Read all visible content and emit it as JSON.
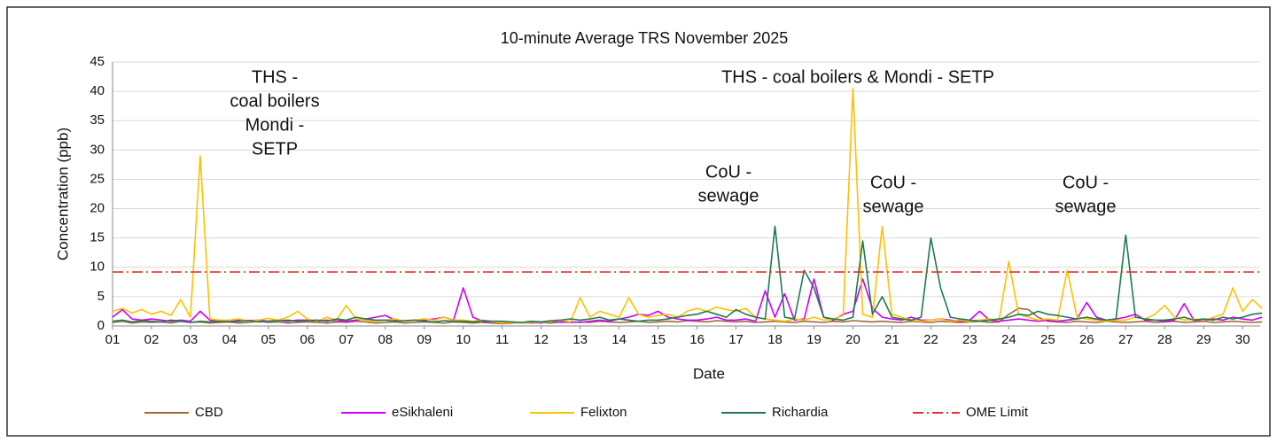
{
  "chart_data": {
    "type": "line",
    "title": "10-minute  Average  TRS  November  2025",
    "xlabel": "Date",
    "ylabel": "Concentration (ppb)",
    "xlim": [
      1,
      30.45
    ],
    "ylim": [
      0,
      45
    ],
    "yticks": [
      0,
      5,
      10,
      15,
      20,
      25,
      30,
      35,
      40,
      45
    ],
    "xticks": [
      {
        "value": 1,
        "label": "01"
      },
      {
        "value": 2,
        "label": "02"
      },
      {
        "value": 3,
        "label": "03"
      },
      {
        "value": 4,
        "label": "04"
      },
      {
        "value": 5,
        "label": "05"
      },
      {
        "value": 6,
        "label": "06"
      },
      {
        "value": 7,
        "label": "07"
      },
      {
        "value": 8,
        "label": "08"
      },
      {
        "value": 9,
        "label": "09"
      },
      {
        "value": 10,
        "label": "10"
      },
      {
        "value": 11,
        "label": "11"
      },
      {
        "value": 12,
        "label": "12"
      },
      {
        "value": 13,
        "label": "13"
      },
      {
        "value": 14,
        "label": "14"
      },
      {
        "value": 15,
        "label": "15"
      },
      {
        "value": 16,
        "label": "16"
      },
      {
        "value": 17,
        "label": "17"
      },
      {
        "value": 18,
        "label": "18"
      },
      {
        "value": 19,
        "label": "19"
      },
      {
        "value": 20,
        "label": "20"
      },
      {
        "value": 21,
        "label": "21"
      },
      {
        "value": 22,
        "label": "22"
      },
      {
        "value": 23,
        "label": "23"
      },
      {
        "value": 24,
        "label": "24"
      },
      {
        "value": 25,
        "label": "25"
      },
      {
        "value": 26,
        "label": "26"
      },
      {
        "value": 27,
        "label": "27"
      },
      {
        "value": 28,
        "label": "28"
      },
      {
        "value": 29,
        "label": "29"
      },
      {
        "value": 30,
        "label": "30"
      }
    ],
    "grid": true,
    "legend": "bottom",
    "x": [
      1,
      1.25,
      1.5,
      1.75,
      2,
      2.25,
      2.5,
      2.75,
      3,
      3.25,
      3.5,
      3.75,
      4,
      4.25,
      4.5,
      4.75,
      5,
      5.25,
      5.5,
      5.75,
      6,
      6.25,
      6.5,
      6.75,
      7,
      7.25,
      7.5,
      7.75,
      8,
      8.25,
      8.5,
      8.75,
      9,
      9.25,
      9.5,
      9.75,
      10,
      10.25,
      10.5,
      10.75,
      11,
      11.25,
      11.5,
      11.75,
      12,
      12.25,
      12.5,
      12.75,
      13,
      13.25,
      13.5,
      13.75,
      14,
      14.25,
      14.5,
      14.75,
      15,
      15.25,
      15.5,
      15.75,
      16,
      16.25,
      16.5,
      16.75,
      17,
      17.25,
      17.5,
      17.75,
      18,
      18.25,
      18.5,
      18.75,
      19,
      19.25,
      19.5,
      19.75,
      20,
      20.25,
      20.5,
      20.75,
      21,
      21.25,
      21.5,
      21.75,
      22,
      22.25,
      22.5,
      22.75,
      23,
      23.25,
      23.5,
      23.75,
      24,
      24.25,
      24.5,
      24.75,
      25,
      25.25,
      25.5,
      25.75,
      26,
      26.25,
      26.5,
      26.75,
      27,
      27.25,
      27.5,
      27.75,
      28,
      28.25,
      28.5,
      28.75,
      29,
      29.25,
      29.5,
      29.75,
      30,
      30.25,
      30.5
    ],
    "series": [
      {
        "name": "CBD",
        "color": "#a0693a",
        "values": [
          0.6,
          0.8,
          0.5,
          0.7,
          0.6,
          0.7,
          0.5,
          0.8,
          0.6,
          0.7,
          0.5,
          0.6,
          0.7,
          0.5,
          0.6,
          0.8,
          0.6,
          0.7,
          0.5,
          0.6,
          0.7,
          0.6,
          0.5,
          0.7,
          0.6,
          0.8,
          0.7,
          0.5,
          0.6,
          0.7,
          0.5,
          0.6,
          0.7,
          0.6,
          0.5,
          0.7,
          0.6,
          0.5,
          0.6,
          0.5,
          0.4,
          0.5,
          0.6,
          0.5,
          0.6,
          0.5,
          0.7,
          0.6,
          0.7,
          0.6,
          0.8,
          0.7,
          0.6,
          0.7,
          0.8,
          0.6,
          0.7,
          0.8,
          0.7,
          0.9,
          0.8,
          0.7,
          0.9,
          0.8,
          0.7,
          0.8,
          0.6,
          0.7,
          0.8,
          0.7,
          0.6,
          0.8,
          0.7,
          0.6,
          0.8,
          0.7,
          0.9,
          0.8,
          0.7,
          0.8,
          0.7,
          0.6,
          0.8,
          0.7,
          0.6,
          0.8,
          0.7,
          0.6,
          0.7,
          0.8,
          0.6,
          0.7,
          2,
          3,
          2.8,
          1.5,
          0.8,
          0.7,
          0.6,
          0.8,
          0.7,
          0.6,
          0.8,
          0.7,
          0.6,
          0.7,
          0.8,
          0.6,
          0.7,
          0.8,
          0.6,
          0.7,
          0.8,
          0.6,
          0.7,
          0.8,
          0.7,
          0.6,
          0.7
        ]
      },
      {
        "name": "eSikhaleni",
        "color": "#cc00ff",
        "values": [
          1.5,
          2.8,
          1.2,
          1,
          1.2,
          1,
          0.8,
          1,
          0.8,
          2.5,
          1,
          0.8,
          0.8,
          1,
          0.9,
          1,
          0.8,
          1,
          0.8,
          1,
          1,
          0.8,
          1,
          0.9,
          0.8,
          1,
          1.2,
          1.5,
          1.8,
          1,
          0.8,
          1,
          1,
          1.2,
          1.5,
          1,
          6.5,
          1.5,
          0.8,
          0.6,
          0.5,
          0.6,
          0.5,
          0.6,
          0.5,
          0.8,
          0.6,
          0.7,
          0.6,
          0.8,
          1,
          0.8,
          1.2,
          1.5,
          2,
          1.8,
          2.5,
          1.5,
          1.2,
          1,
          1,
          1.2,
          1.5,
          1,
          1,
          1.2,
          0.8,
          6,
          1.5,
          5.5,
          1,
          1.2,
          8,
          1.5,
          1,
          2,
          2.5,
          8,
          3,
          1.5,
          1.2,
          1,
          1.5,
          1,
          1,
          1.2,
          1,
          0.8,
          1,
          2.5,
          1,
          0.8,
          1,
          1.2,
          1,
          0.8,
          1,
          0.8,
          1,
          1.2,
          4,
          1.5,
          1,
          1.2,
          1.5,
          2,
          1,
          1,
          0.8,
          1,
          3.8,
          1,
          1,
          1.2,
          1,
          1.5,
          1.2,
          1,
          1.5
        ]
      },
      {
        "name": "Felixton",
        "color": "#ffc000",
        "values": [
          2.5,
          3,
          2.2,
          2.8,
          2,
          2.5,
          1.8,
          4.5,
          1.5,
          29,
          1.2,
          1,
          1,
          1.2,
          0.8,
          1,
          1.3,
          1,
          1.5,
          2.5,
          1.2,
          0.8,
          1.5,
          1,
          3.5,
          1.2,
          1,
          0.8,
          1,
          1.2,
          0.8,
          1,
          1.2,
          1,
          1.5,
          1,
          1,
          0.8,
          1,
          0.7,
          0.5,
          0.6,
          0.5,
          0.7,
          0.6,
          0.8,
          1,
          0.7,
          4.8,
          1.5,
          2.5,
          2,
          1.5,
          4.8,
          2,
          1.5,
          1.8,
          2,
          1.5,
          2.5,
          3,
          2.5,
          3.2,
          2.8,
          2.5,
          3,
          1.5,
          1.2,
          1,
          0.8,
          1.2,
          1,
          1.5,
          1,
          1.2,
          1.8,
          40.5,
          2,
          1.5,
          17,
          2,
          1.5,
          1,
          0.8,
          1,
          1.2,
          0.8,
          1,
          0.8,
          1,
          1.2,
          1,
          11,
          2,
          1.5,
          1,
          1.2,
          1,
          9.5,
          1.5,
          1.2,
          1,
          0.8,
          1,
          1,
          1.5,
          1.2,
          2,
          3.5,
          1.5,
          1,
          1.2,
          1,
          1.5,
          2,
          6.5,
          2.5,
          4.5,
          3
        ]
      },
      {
        "name": "Richardia",
        "color": "#1f7a4f",
        "values": [
          0.8,
          1,
          0.7,
          0.9,
          0.8,
          0.7,
          1,
          0.8,
          0.6,
          0.8,
          0.7,
          0.8,
          0.7,
          0.8,
          0.9,
          0.7,
          0.8,
          0.9,
          1,
          0.8,
          0.9,
          1,
          0.8,
          1.2,
          1,
          1.5,
          1.2,
          1,
          1,
          0.8,
          0.9,
          1,
          0.8,
          0.7,
          0.9,
          0.8,
          0.8,
          0.7,
          0.9,
          0.8,
          0.8,
          0.7,
          0.6,
          0.8,
          0.7,
          0.9,
          1,
          1.2,
          1,
          1.2,
          1.5,
          1,
          1.2,
          1,
          0.8,
          1,
          1,
          1.2,
          1.5,
          1.8,
          2,
          2.5,
          2,
          1.5,
          2.8,
          2,
          1.5,
          1.2,
          17,
          1.5,
          1.2,
          9.5,
          6.5,
          1.5,
          1.2,
          1,
          1.5,
          14.5,
          2,
          5,
          1.5,
          1.2,
          1,
          1.5,
          15,
          6.5,
          1.5,
          1.2,
          1,
          0.8,
          1,
          1.2,
          1.5,
          2,
          1.8,
          2.5,
          2,
          1.8,
          1.5,
          1.2,
          1.5,
          1.2,
          1,
          1.2,
          15.5,
          1.5,
          1.2,
          1,
          1,
          1.2,
          1.5,
          1,
          1.2,
          1,
          1.5,
          1.2,
          1.5,
          2,
          2.2
        ]
      }
    ],
    "reference_line": {
      "name": "OME Limit",
      "value": 9.2,
      "color": "#e8302a"
    },
    "annotations": [
      [
        "THS -",
        "coal boilers",
        "Mondi -",
        "SETP"
      ],
      [
        "THS - coal boilers & Mondi -  SETP"
      ],
      [
        "CoU -",
        "sewage"
      ],
      [
        "CoU -",
        "sewage"
      ],
      [
        "CoU -",
        "sewage"
      ]
    ]
  }
}
